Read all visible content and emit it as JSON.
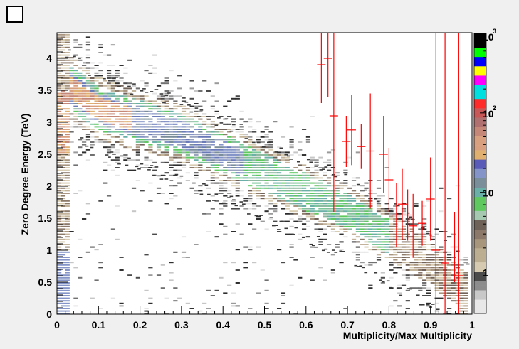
{
  "chart_data": {
    "type": "heatmap",
    "title": "",
    "xlabel": "Multiplicity/Max Multiplicity",
    "ylabel": "Zero Degree Energy (TeV)",
    "xlim": [
      0,
      1
    ],
    "ylim": [
      0,
      4.4
    ],
    "x_ticks": [
      "0",
      "0.1",
      "0.2",
      "0.3",
      "0.4",
      "0.5",
      "0.6",
      "0.7",
      "0.8",
      "0.9",
      "1"
    ],
    "y_ticks": [
      "0",
      "0.5",
      "1",
      "1.5",
      "2",
      "2.5",
      "3",
      "3.5",
      "4"
    ],
    "color_scale": {
      "log": true,
      "range": [
        1,
        1000
      ],
      "labels": [
        {
          "mantissa": "1",
          "exponent": ""
        },
        {
          "mantissa": "10",
          "exponent": ""
        },
        {
          "mantissa": "10",
          "exponent": "2"
        },
        {
          "mantissa": "10",
          "exponent": "3"
        }
      ],
      "palette": [
        "#e8e8e8",
        "#c8c8c8",
        "#8c8c8c",
        "#4a4a4a",
        "#d6cbb0",
        "#bcae90",
        "#a8967c",
        "#8c7868",
        "#6e6258",
        "#a5c8b0",
        "#5fc95f",
        "#6ab0a8",
        "#7a8e9a",
        "#8494c8",
        "#5a5ab8",
        "#e0b070",
        "#d9a080",
        "#c58878",
        "#b07070",
        "#c85858",
        "#ff2a2a",
        "#00e0e0",
        "#ff00ff",
        "#ffff00",
        "#0000ff",
        "#00ff00",
        "#000000"
      ]
    },
    "band": {
      "description_points": [
        [
          0.02,
          3.6
        ],
        [
          0.1,
          3.2
        ],
        [
          0.3,
          2.8
        ],
        [
          0.5,
          2.2
        ],
        [
          0.7,
          1.6
        ],
        [
          0.9,
          0.8
        ],
        [
          0.98,
          0.3
        ]
      ]
    },
    "profile_series": {
      "name": "",
      "color": "#ff0000",
      "points": [
        {
          "x": 0.637,
          "y": 3.9,
          "err": 0.6
        },
        {
          "x": 0.653,
          "y": 4.0,
          "err": 0.6
        },
        {
          "x": 0.667,
          "y": 3.1,
          "err": 1.5
        },
        {
          "x": 0.697,
          "y": 2.7,
          "err": 0.4
        },
        {
          "x": 0.71,
          "y": 2.88,
          "err": 0.55
        },
        {
          "x": 0.733,
          "y": 2.62,
          "err": 0.35
        },
        {
          "x": 0.755,
          "y": 2.55,
          "err": 0.9
        },
        {
          "x": 0.787,
          "y": 2.5,
          "err": 0.6
        },
        {
          "x": 0.8,
          "y": 2.1,
          "err": 0.5
        },
        {
          "x": 0.818,
          "y": 1.55,
          "err": 0.5
        },
        {
          "x": 0.832,
          "y": 1.72,
          "err": 0.55
        },
        {
          "x": 0.845,
          "y": 1.55,
          "err": 0.4
        },
        {
          "x": 0.858,
          "y": 1.38,
          "err": 0.5
        },
        {
          "x": 0.88,
          "y": 1.42,
          "err": 0.35
        },
        {
          "x": 0.9,
          "y": 1.8,
          "err": 0.65
        },
        {
          "x": 0.913,
          "y": 1.0,
          "err": 3.5
        },
        {
          "x": 0.935,
          "y": 0.8,
          "err": 3.6
        },
        {
          "x": 0.958,
          "y": 1.05,
          "err": 0.55
        },
        {
          "x": 0.968,
          "y": 0.6,
          "err": 3.8
        }
      ]
    }
  }
}
